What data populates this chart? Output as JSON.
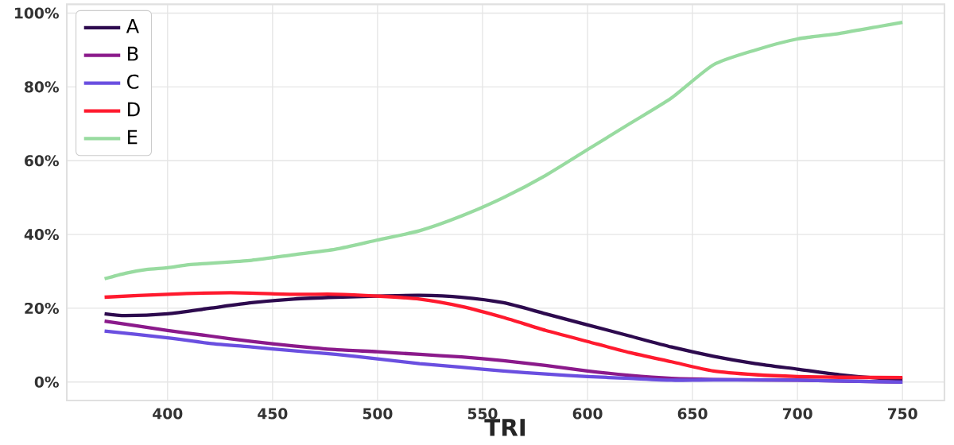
{
  "chart_data": {
    "type": "line",
    "xlabel": "TRI",
    "xlim": [
      352,
      770
    ],
    "xticks": [
      400,
      450,
      500,
      550,
      600,
      650,
      700,
      750
    ],
    "ylim": [
      -5,
      102.4
    ],
    "yticks": [
      {
        "value": 0,
        "label": "0%"
      },
      {
        "value": 20,
        "label": "20%"
      },
      {
        "value": 40,
        "label": "40%"
      },
      {
        "value": 60,
        "label": "60%"
      },
      {
        "value": 80,
        "label": "80%"
      },
      {
        "value": 100,
        "label": "100%"
      }
    ],
    "grid": true,
    "legend": "top left",
    "marker": "none",
    "line_style": "solid",
    "series": [
      {
        "name": "A",
        "color": "#2d0a4e",
        "x": [
          370,
          380,
          400,
          420,
          440,
          460,
          480,
          500,
          520,
          540,
          560,
          580,
          600,
          620,
          640,
          660,
          680,
          700,
          720,
          740,
          750
        ],
        "values": [
          18.5,
          18,
          18.5,
          20,
          21.5,
          22.5,
          23,
          23.3,
          23.5,
          23,
          21.5,
          18.5,
          15.5,
          12.5,
          9.5,
          7,
          5,
          3.5,
          2,
          1,
          0.8
        ]
      },
      {
        "name": "B",
        "color": "#8b1a8b",
        "x": [
          370,
          400,
          420,
          440,
          460,
          480,
          500,
          520,
          540,
          560,
          580,
          600,
          620,
          640,
          660,
          700,
          750
        ],
        "values": [
          16.5,
          14,
          12.5,
          11,
          9.8,
          8.8,
          8.2,
          7.5,
          6.8,
          5.8,
          4.5,
          3,
          1.8,
          1,
          0.7,
          0.5,
          0
        ]
      },
      {
        "name": "C",
        "color": "#6a4fe0",
        "x": [
          370,
          400,
          420,
          440,
          460,
          480,
          500,
          520,
          540,
          560,
          580,
          600,
          620,
          640,
          660,
          700,
          750
        ],
        "values": [
          13.8,
          12,
          10.5,
          9.5,
          8.5,
          7.5,
          6.3,
          5,
          4,
          3,
          2.2,
          1.5,
          1,
          0.5,
          0.6,
          0.5,
          0
        ]
      },
      {
        "name": "D",
        "color": "#ff1a2e",
        "x": [
          370,
          400,
          430,
          460,
          480,
          500,
          520,
          540,
          560,
          580,
          600,
          620,
          640,
          660,
          680,
          700,
          720,
          750
        ],
        "values": [
          23,
          23.8,
          24.2,
          23.8,
          23.8,
          23.3,
          22.5,
          20.5,
          17.5,
          14,
          11,
          8,
          5.5,
          3,
          2,
          1.5,
          1.3,
          1.2
        ]
      },
      {
        "name": "E",
        "color": "#98dba0",
        "x": [
          370,
          380,
          390,
          400,
          410,
          420,
          440,
          460,
          480,
          500,
          520,
          540,
          560,
          580,
          600,
          620,
          640,
          660,
          680,
          700,
          720,
          740,
          750
        ],
        "values": [
          28,
          29.5,
          30.5,
          31,
          31.8,
          32.2,
          33,
          34.5,
          36,
          38.5,
          41,
          45,
          50,
          56,
          63,
          70,
          77,
          86,
          90,
          93,
          94.5,
          96.5,
          97.5
        ]
      }
    ]
  }
}
